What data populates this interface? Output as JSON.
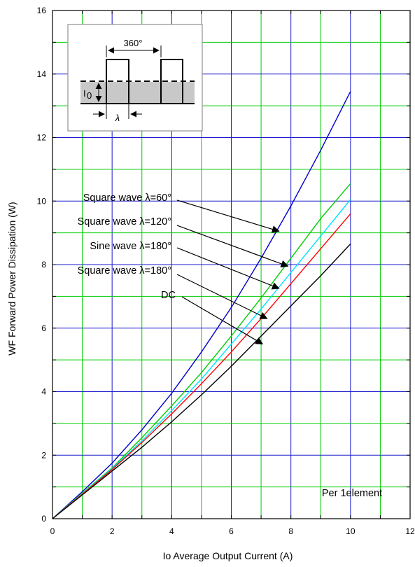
{
  "chart_data": {
    "type": "line",
    "xlabel": "Io    Average Output Current    (A)",
    "ylabel": "WF     Forward Power Dissipation     (W)",
    "xlim": [
      0,
      12
    ],
    "ylim": [
      0,
      16
    ],
    "x_ticks": [
      0,
      2,
      4,
      6,
      8,
      10,
      12
    ],
    "y_ticks": [
      0,
      2,
      4,
      6,
      8,
      10,
      12,
      14,
      16
    ],
    "grid": true,
    "grid_colors": {
      "major": "#1a1acc",
      "minor": "#00cc00"
    },
    "series": [
      {
        "name": "Square wave  λ=60°",
        "color": "#0000cc",
        "x": [
          0,
          1,
          2,
          3,
          4,
          5,
          6,
          7,
          8,
          9,
          10
        ],
        "y": [
          0,
          0.85,
          1.75,
          2.8,
          3.95,
          5.25,
          6.65,
          8.2,
          9.85,
          11.6,
          13.45
        ]
      },
      {
        "name": "Square wave  λ=120°",
        "color": "#00cc00",
        "x": [
          0,
          1,
          2,
          3,
          4,
          5,
          6,
          7,
          8,
          9,
          10
        ],
        "y": [
          0,
          0.8,
          1.6,
          2.55,
          3.55,
          4.6,
          5.75,
          6.95,
          8.2,
          9.45,
          10.55
        ]
      },
      {
        "name": "Sine wave  λ=180°",
        "color": "#00e5ff",
        "x": [
          0,
          1,
          2,
          3,
          4,
          5,
          6,
          7,
          8,
          9,
          10
        ],
        "y": [
          0,
          0.78,
          1.58,
          2.45,
          3.4,
          4.4,
          5.5,
          6.6,
          7.75,
          8.9,
          10.05
        ]
      },
      {
        "name": "Square wave  λ=180°",
        "color": "#ff0000",
        "x": [
          0,
          1,
          2,
          3,
          4,
          5,
          6,
          7,
          8,
          9,
          10
        ],
        "y": [
          0,
          0.77,
          1.55,
          2.4,
          3.3,
          4.25,
          5.25,
          6.3,
          7.4,
          8.5,
          9.6
        ]
      },
      {
        "name": "DC",
        "color": "#000000",
        "x": [
          0,
          1,
          2,
          3,
          4,
          5,
          6,
          7,
          8,
          9,
          10
        ],
        "y": [
          0,
          0.75,
          1.5,
          2.25,
          3.05,
          3.9,
          4.8,
          5.75,
          6.7,
          7.65,
          8.65
        ]
      }
    ],
    "annotations": [
      {
        "text": "Square wave  λ=60°",
        "points_to": [
          7.6,
          9.05
        ]
      },
      {
        "text": "Square wave  λ=120°",
        "points_to": [
          7.9,
          7.95
        ]
      },
      {
        "text": "Sine wave  λ=180°",
        "points_to": [
          7.6,
          7.25
        ]
      },
      {
        "text": "Square wave  λ=180°",
        "points_to": [
          7.2,
          6.3
        ]
      },
      {
        "text": "DC",
        "points_to": [
          7.05,
          5.5
        ]
      }
    ],
    "note": "Per 1element",
    "inset": {
      "angle_label": "360°",
      "current_label": "I",
      "current_sub": "0",
      "width_label": "λ"
    }
  }
}
